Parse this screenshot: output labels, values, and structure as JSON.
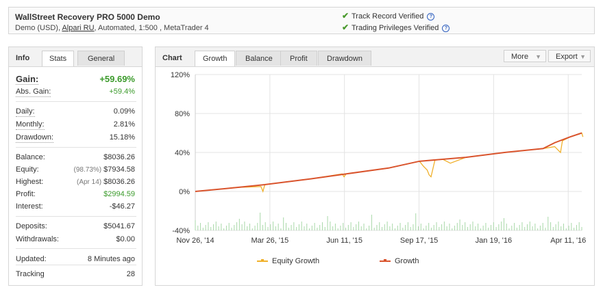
{
  "header": {
    "title": "WallStreet Recovery PRO 5000 Demo",
    "sub_before": "Demo (USD), ",
    "broker_link": "Alpari RU",
    "sub_after": ", Automated, 1:500 , MetaTrader 4",
    "verifications": [
      {
        "label": "Track Record Verified"
      },
      {
        "label": "Trading Privileges Verified"
      }
    ]
  },
  "info": {
    "tabs": {
      "info": "Info",
      "stats": "Stats",
      "general": "General"
    },
    "gain": {
      "label": "Gain:",
      "value": "+59.69%"
    },
    "abs_gain": {
      "label": "Abs. Gain:",
      "value": "+59.4%"
    },
    "daily": {
      "label": "Daily:",
      "value": "0.09%"
    },
    "monthly": {
      "label": "Monthly:",
      "value": "2.81%"
    },
    "drawdown": {
      "label": "Drawdown:",
      "value": "15.18%"
    },
    "balance": {
      "label": "Balance:",
      "value": "$8036.26"
    },
    "equity": {
      "label": "Equity:",
      "prefix": "(98.73%)",
      "value": "$7934.58"
    },
    "highest": {
      "label": "Highest:",
      "prefix": "(Apr 14)",
      "value": "$8036.26"
    },
    "profit": {
      "label": "Profit:",
      "value": "$2994.59"
    },
    "interest": {
      "label": "Interest:",
      "value": "-$46.27"
    },
    "deposits": {
      "label": "Deposits:",
      "value": "$5041.67"
    },
    "withdrawals": {
      "label": "Withdrawals:",
      "value": "$0.00"
    },
    "updated": {
      "label": "Updated:",
      "value": "8 Minutes ago"
    },
    "tracking": {
      "label": "Tracking",
      "value": "28"
    }
  },
  "chart_panel": {
    "tabs": {
      "chart": "Chart",
      "growth": "Growth",
      "balance": "Balance",
      "profit": "Profit",
      "drawdown": "Drawdown"
    },
    "more": "More",
    "export": "Export"
  },
  "colors": {
    "growth": "#d9532c",
    "equity": "#f0b02a",
    "volume": "#a8d8a8",
    "positive": "#3a9a2a"
  },
  "chart_data": {
    "type": "line",
    "y_ticks": [
      "120%",
      "80%",
      "40%",
      "0%",
      "-40%"
    ],
    "ylim": [
      -40,
      120
    ],
    "x_ticks": [
      "Nov 26, '14",
      "Mar 26, '15",
      "Jun 11, '15",
      "Sep 17, '15",
      "Jan 19, '16",
      "Apr 11, '16"
    ],
    "grid": true,
    "legend_position": "bottom",
    "series": [
      {
        "name": "Equity Growth",
        "color": "#f0b02a",
        "points": [
          [
            0,
            0
          ],
          [
            0.08,
            3
          ],
          [
            0.1,
            4
          ],
          [
            0.17,
            5
          ],
          [
            0.175,
            0
          ],
          [
            0.18,
            7
          ],
          [
            0.3,
            13
          ],
          [
            0.38,
            18
          ],
          [
            0.385,
            15
          ],
          [
            0.39,
            18
          ],
          [
            0.5,
            24
          ],
          [
            0.58,
            31
          ],
          [
            0.59,
            26
          ],
          [
            0.6,
            22
          ],
          [
            0.605,
            17
          ],
          [
            0.61,
            15
          ],
          [
            0.62,
            32
          ],
          [
            0.64,
            33
          ],
          [
            0.66,
            29
          ],
          [
            0.7,
            35
          ],
          [
            0.8,
            40
          ],
          [
            0.9,
            44
          ],
          [
            0.93,
            46
          ],
          [
            0.94,
            42
          ],
          [
            0.945,
            40
          ],
          [
            0.95,
            52
          ],
          [
            0.97,
            56
          ],
          [
            1.0,
            60
          ],
          [
            1.003,
            56
          ]
        ]
      },
      {
        "name": "Growth",
        "color": "#d9532c",
        "points": [
          [
            0,
            0
          ],
          [
            0.08,
            3
          ],
          [
            0.18,
            7
          ],
          [
            0.3,
            13
          ],
          [
            0.39,
            18
          ],
          [
            0.5,
            24
          ],
          [
            0.58,
            31
          ],
          [
            0.7,
            35
          ],
          [
            0.8,
            40
          ],
          [
            0.9,
            44
          ],
          [
            0.93,
            50
          ],
          [
            0.97,
            56
          ],
          [
            1.0,
            60
          ]
        ]
      }
    ]
  }
}
